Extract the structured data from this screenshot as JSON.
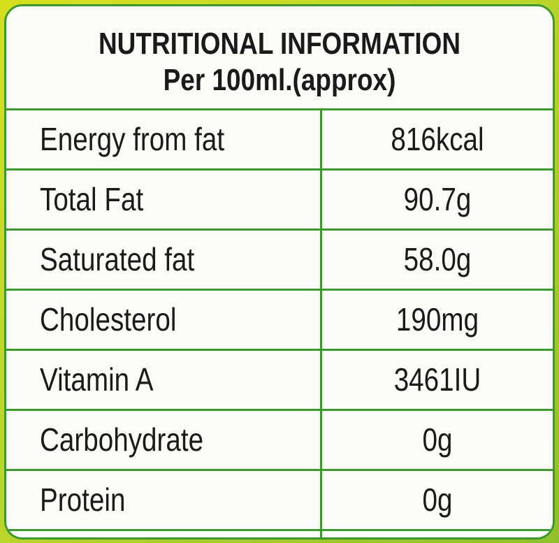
{
  "header": {
    "title": "NUTRITIONAL INFORMATION",
    "subtitle": "Per 100ml.(approx)"
  },
  "table": {
    "rows": [
      [
        "Energy from fat",
        "816kcal"
      ],
      [
        "Total Fat",
        "90.7g"
      ],
      [
        "Saturated fat",
        "58.0g"
      ],
      [
        "Cholesterol",
        "190mg"
      ],
      [
        "Vitamin A",
        "3461IU"
      ],
      [
        "Carbohydrate",
        "0g"
      ],
      [
        "Protein",
        "0g"
      ]
    ]
  }
}
